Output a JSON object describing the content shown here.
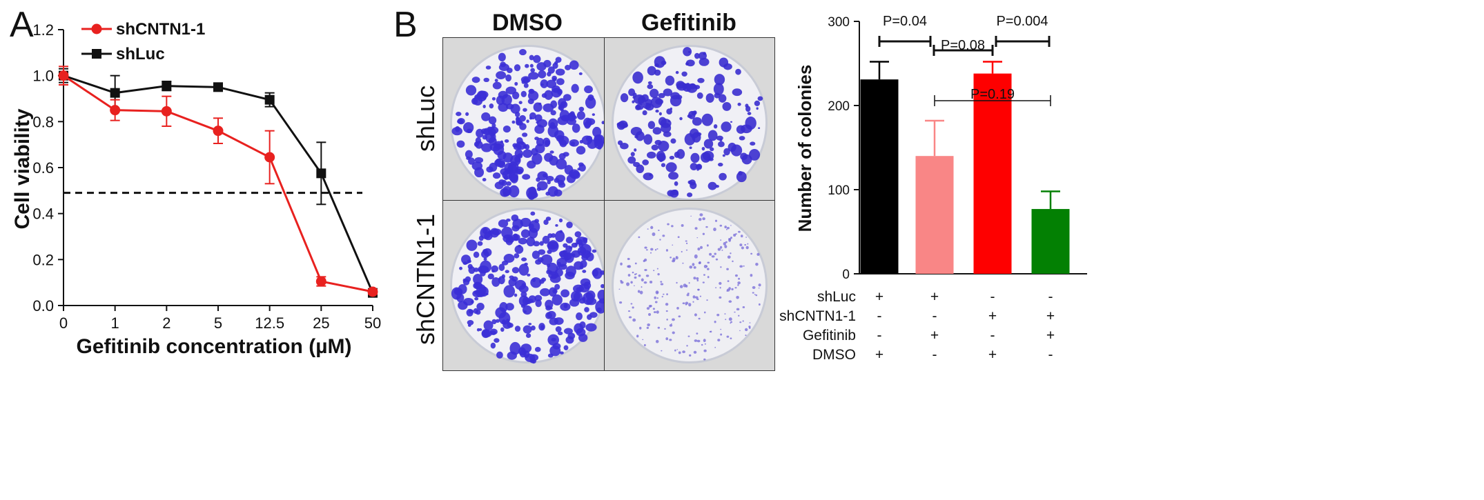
{
  "panel_a": {
    "letter": "A",
    "ylabel": "Cell viability",
    "xlabel": "Gefitinib concentration (µM)",
    "legend": [
      {
        "name": "shCNTN1-1",
        "color": "#e8211f"
      },
      {
        "name": "shLuc",
        "color": "#111111"
      }
    ]
  },
  "panel_b": {
    "letter": "B",
    "columns": [
      "DMSO",
      "Gefitinib"
    ],
    "rows": [
      "shLuc",
      "shCNTN1-1"
    ],
    "ylabel": "Number of colonies",
    "conditions": [
      {
        "label": "shLuc",
        "marks": [
          "+",
          "+",
          "-",
          "-"
        ]
      },
      {
        "label": "shCNTN1-1",
        "marks": [
          "-",
          "-",
          "+",
          "+"
        ]
      },
      {
        "label": "Gefitinib",
        "marks": [
          "-",
          "+",
          "-",
          "+"
        ]
      },
      {
        "label": "DMSO",
        "marks": [
          "+",
          "-",
          "+",
          "-"
        ]
      }
    ],
    "pvalues": [
      "P=0.04",
      "P=0.08",
      "P=0.004",
      "P=0.19"
    ]
  },
  "chart_data": [
    {
      "type": "line",
      "categories": [
        "0",
        "1",
        "2",
        "5",
        "12.5",
        "25",
        "50"
      ],
      "ylabel": "Cell viability",
      "xlabel": "Gefitinib concentration (µM)",
      "ylim": [
        0,
        1.2
      ],
      "yticks": [
        "0.0",
        "0.2",
        "0.4",
        "0.6",
        "0.8",
        "1.0",
        "1.2"
      ],
      "reference_line": 0.49,
      "series": [
        {
          "name": "shCNTN1-1",
          "color": "#e8211f",
          "values": [
            1.0,
            0.85,
            0.845,
            0.76,
            0.645,
            0.105,
            0.06
          ],
          "errors": [
            0.04,
            0.045,
            0.065,
            0.055,
            0.115,
            0.02,
            0.01
          ]
        },
        {
          "name": "shLuc",
          "color": "#111111",
          "values": [
            1.0,
            0.925,
            0.955,
            0.95,
            0.895,
            0.575,
            0.055
          ],
          "errors": [
            0.03,
            0.075,
            0.02,
            0.01,
            0.03,
            0.135,
            0.01
          ]
        }
      ]
    },
    {
      "type": "bar",
      "categories": [
        "shLuc + DMSO",
        "shLuc + Gefitinib",
        "shCNTN1-1 + DMSO",
        "shCNTN1-1 + Gefitinib"
      ],
      "values": [
        231,
        140,
        238,
        77
      ],
      "errors": [
        21,
        42,
        14,
        21
      ],
      "colors": [
        "#000000",
        "#f98686",
        "#fe0000",
        "#038003"
      ],
      "ylabel": "Number of colonies",
      "ylim": [
        0,
        300
      ],
      "yticks": [
        "0",
        "100",
        "200",
        "300"
      ]
    }
  ]
}
